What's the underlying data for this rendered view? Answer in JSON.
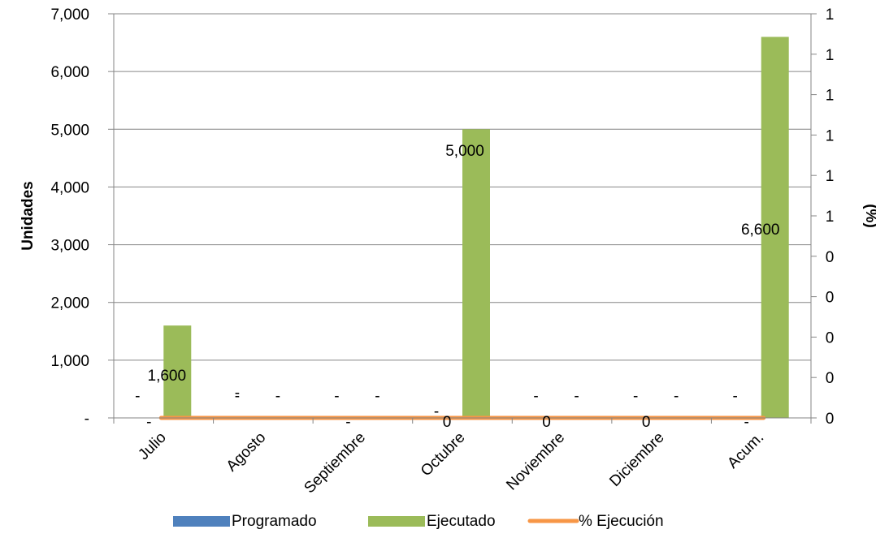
{
  "chart_data": {
    "type": "bar",
    "categories": [
      "Julio",
      "Agosto",
      "Septiembre",
      "Octubre",
      "Noviembre",
      "Diciembre",
      "Acum."
    ],
    "series": [
      {
        "name": "Programado",
        "type": "bar",
        "axis": "left",
        "values": [
          0,
          0,
          0,
          0,
          0,
          0,
          0
        ],
        "color": "#4f81bd",
        "labels": [
          "-",
          "-",
          "-",
          "-",
          "-",
          "-",
          "-"
        ]
      },
      {
        "name": "Ejecutado",
        "type": "bar",
        "axis": "left",
        "values": [
          1600,
          0,
          0,
          5000,
          0,
          0,
          6600
        ],
        "color": "#9bbb59",
        "labels": [
          "1,600",
          "-",
          "-",
          "5,000",
          "-",
          "-",
          "6,600"
        ]
      },
      {
        "name": "% Ejecución",
        "type": "line",
        "axis": "right",
        "values": [
          0,
          0,
          0,
          0,
          0,
          0,
          0
        ],
        "color": "#f79646",
        "labels": [
          "-",
          "-",
          "-",
          "0",
          "0",
          "0",
          "-"
        ]
      }
    ],
    "ylabel": "Unidades",
    "y2label": "(%)",
    "ylim": [
      0,
      7000
    ],
    "y_ticks": [
      0,
      1000,
      2000,
      3000,
      4000,
      5000,
      6000,
      7000
    ],
    "y_tick_labels": [
      "-",
      "1,000",
      "2,000",
      "3,000",
      "4,000",
      "5,000",
      "6,000",
      "7,000"
    ],
    "y2_tick_labels": [
      "0",
      "0",
      "0",
      "0",
      "0",
      "1",
      "1",
      "1",
      "1",
      "1",
      "1"
    ],
    "grid": "horizontal",
    "legend": "bottom"
  }
}
